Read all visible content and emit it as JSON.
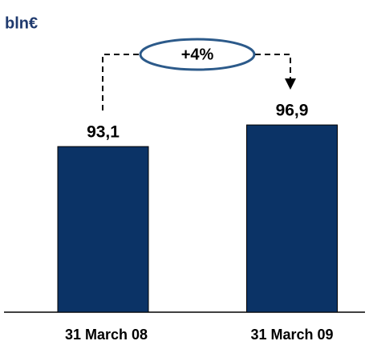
{
  "chart_data": {
    "type": "bar",
    "title": "bln€",
    "annotation": "+4%",
    "categories": [
      "31 March 08",
      "31 March 09"
    ],
    "values": [
      93.1,
      96.9
    ],
    "value_labels": [
      "93,1",
      "96,9"
    ],
    "color": "#0b3366",
    "ylim": [
      64,
      114
    ]
  }
}
